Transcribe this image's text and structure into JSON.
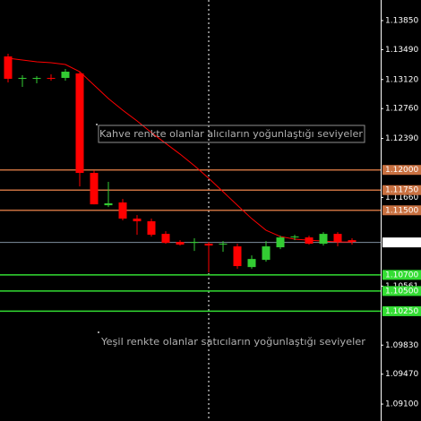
{
  "chart_data": {
    "type": "candlestick",
    "candles": [
      {
        "open": 1.13406,
        "high": 1.13439,
        "low": 1.13084,
        "close": 1.13129
      },
      {
        "open": 1.13129,
        "high": 1.13173,
        "low": 1.13029,
        "close": 1.1314
      },
      {
        "open": 1.13129,
        "high": 1.13162,
        "low": 1.13073,
        "close": 1.1314
      },
      {
        "open": 1.1314,
        "high": 1.13184,
        "low": 1.13106,
        "close": 1.13129
      },
      {
        "open": 1.1314,
        "high": 1.13251,
        "low": 1.13106,
        "close": 1.13217
      },
      {
        "open": 1.13195,
        "high": 1.13217,
        "low": 1.11796,
        "close": 1.11963
      },
      {
        "open": 1.11963,
        "high": 1.11996,
        "low": 1.11574,
        "close": 1.11574
      },
      {
        "open": 1.11563,
        "high": 1.11852,
        "low": 1.11541,
        "close": 1.11586
      },
      {
        "open": 1.11597,
        "high": 1.11641,
        "low": 1.11375,
        "close": 1.11397
      },
      {
        "open": 1.11397,
        "high": 1.11441,
        "low": 1.11197,
        "close": 1.11364
      },
      {
        "open": 1.11364,
        "high": 1.11397,
        "low": 1.11175,
        "close": 1.11197
      },
      {
        "open": 1.11208,
        "high": 1.11241,
        "low": 1.11086,
        "close": 1.11097
      },
      {
        "open": 1.11108,
        "high": 1.1113,
        "low": 1.11064,
        "close": 1.11075
      },
      {
        "open": 1.11097,
        "high": 1.11153,
        "low": 1.10997,
        "close": 1.11108
      },
      {
        "open": 1.11086,
        "high": 1.11108,
        "low": 1.10731,
        "close": 1.11064
      },
      {
        "open": 1.11075,
        "high": 1.11119,
        "low": 1.10986,
        "close": 1.11086
      },
      {
        "open": 1.11053,
        "high": 1.11086,
        "low": 1.10775,
        "close": 1.10809
      },
      {
        "open": 1.10797,
        "high": 1.10942,
        "low": 1.10775,
        "close": 1.10897
      },
      {
        "open": 1.10886,
        "high": 1.11119,
        "low": 1.10864,
        "close": 1.11053
      },
      {
        "open": 1.11042,
        "high": 1.11186,
        "low": 1.11019,
        "close": 1.11164
      },
      {
        "open": 1.11164,
        "high": 1.11197,
        "low": 1.1113,
        "close": 1.11175
      },
      {
        "open": 1.11164,
        "high": 1.11186,
        "low": 1.11075,
        "close": 1.11086
      },
      {
        "open": 1.11086,
        "high": 1.1123,
        "low": 1.11064,
        "close": 1.11208
      },
      {
        "open": 1.11208,
        "high": 1.1123,
        "low": 1.11053,
        "close": 1.11108
      },
      {
        "open": 1.1113,
        "high": 1.11153,
        "low": 1.11075,
        "close": 1.11108
      }
    ],
    "up_color": "#33cc33",
    "down_color": "#ff0000",
    "moving_average": {
      "color": "#ff0000",
      "values": [
        1.13384,
        1.13362,
        1.13339,
        1.13328,
        1.13306,
        1.13217,
        1.13051,
        1.12884,
        1.1274,
        1.12607,
        1.12463,
        1.12329,
        1.12196,
        1.12052,
        1.11897,
        1.1173,
        1.11563,
        1.11397,
        1.11253,
        1.11175,
        1.11142,
        1.1113,
        1.11119,
        1.11108,
        1.11108
      ]
    },
    "ylim": [
      1.0889,
      1.14105
    ],
    "yticks": [
      {
        "value": 1.1385,
        "label": "1.13850"
      },
      {
        "value": 1.1349,
        "label": "1.13490"
      },
      {
        "value": 1.1312,
        "label": "1.13120"
      },
      {
        "value": 1.1276,
        "label": "1.12760"
      },
      {
        "value": 1.1239,
        "label": "1.12390"
      },
      {
        "value": 1.1166,
        "label": "1.11660"
      },
      1.10561,
      {
        "value": 1.0983,
        "label": "1.09830"
      },
      {
        "value": 1.0947,
        "label": "1.09470"
      },
      {
        "value": 1.091,
        "label": "1.09100"
      }
    ],
    "buyer_levels": {
      "color": "#c87040",
      "levels": [
        {
          "value": 1.12,
          "label": "1.12000"
        },
        {
          "value": 1.1175,
          "label": "1.11750"
        },
        {
          "value": 1.115,
          "label": "1.11500"
        }
      ]
    },
    "seller_levels": {
      "color": "#33dd33",
      "levels": [
        {
          "value": 1.107,
          "label": "1.10700"
        },
        {
          "value": 1.105,
          "label": "1.10500"
        },
        {
          "value": 1.1025,
          "label": "1.10250"
        }
      ]
    },
    "current_price": 1.11102,
    "annotations": [
      "Kahve renkte olanlar alıcıların yoğunlaştığı seviyeler",
      "Yeşil renkte olanlar satıcıların yoğunlaştığı seviyeler"
    ]
  }
}
